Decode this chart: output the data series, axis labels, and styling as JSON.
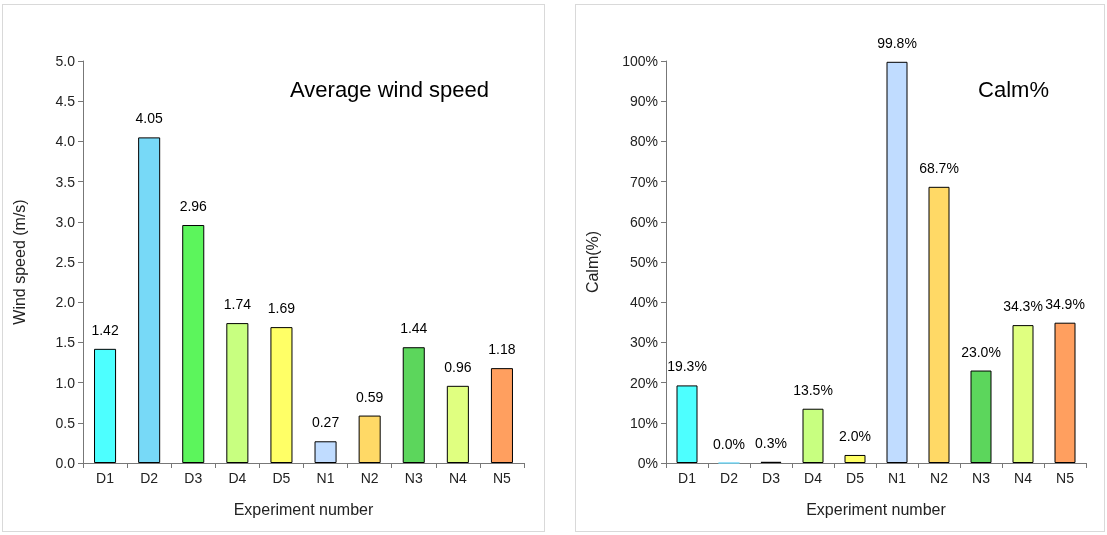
{
  "chart_data": [
    {
      "type": "bar",
      "title": "Average wind speed",
      "xlabel": "Experiment number",
      "ylabel": "Wind speed (m/s)",
      "categories": [
        "D1",
        "D2",
        "D3",
        "D4",
        "D5",
        "N1",
        "N2",
        "N3",
        "N4",
        "N5"
      ],
      "values": [
        1.42,
        4.05,
        2.96,
        1.74,
        1.69,
        0.27,
        0.59,
        1.44,
        0.96,
        1.18
      ],
      "colors": [
        "#4dffff",
        "#77d9f7",
        "#5cf55c",
        "#c8ff80",
        "#ffff66",
        "#c0dcff",
        "#ffd966",
        "#5cd65c",
        "#e0ff80",
        "#ff9f5f"
      ],
      "ylim": [
        0,
        5
      ],
      "yticks": [
        {
          "value": 0,
          "label": "0.0"
        },
        {
          "value": 0.5,
          "label": "0.5"
        },
        {
          "value": 1,
          "label": "1.0"
        },
        {
          "value": 1.5,
          "label": "1.5"
        },
        {
          "value": 2,
          "label": "2.0"
        },
        {
          "value": 2.5,
          "label": "2.5"
        },
        {
          "value": 3,
          "label": "3.0"
        },
        {
          "value": 3.5,
          "label": "3.5"
        },
        {
          "value": 4,
          "label": "4.0"
        },
        {
          "value": 4.5,
          "label": "4.5"
        },
        {
          "value": 5,
          "label": "5.0"
        }
      ],
      "data_labels": true,
      "grid": false
    },
    {
      "type": "bar",
      "title": "Calm%",
      "xlabel": "Experiment number",
      "ylabel": "Calm(%)",
      "categories": [
        "D1",
        "D2",
        "D3",
        "D4",
        "D5",
        "N1",
        "N2",
        "N3",
        "N4",
        "N5"
      ],
      "values": [
        19.3,
        0.0,
        0.3,
        13.5,
        2.0,
        99.8,
        68.7,
        23.0,
        34.3,
        34.9
      ],
      "value_labels": [
        "19.3%",
        "0.0%",
        "0.3%",
        "13.5%",
        "2.0%",
        "99.8%",
        "68.7%",
        "23.0%",
        "34.3%",
        "34.9%"
      ],
      "colors": [
        "#4dffff",
        "#77d9f7",
        "#5cf55c",
        "#c8ff80",
        "#ffff66",
        "#c0dcff",
        "#ffd966",
        "#5cd65c",
        "#e0ff80",
        "#ff9f5f"
      ],
      "ylim": [
        0,
        100
      ],
      "yticks": [
        {
          "value": 0,
          "label": "0%"
        },
        {
          "value": 10,
          "label": "10%"
        },
        {
          "value": 20,
          "label": "20%"
        },
        {
          "value": 30,
          "label": "30%"
        },
        {
          "value": 40,
          "label": "40%"
        },
        {
          "value": 50,
          "label": "50%"
        },
        {
          "value": 60,
          "label": "60%"
        },
        {
          "value": 70,
          "label": "70%"
        },
        {
          "value": 80,
          "label": "80%"
        },
        {
          "value": 90,
          "label": "90%"
        },
        {
          "value": 100,
          "label": "100%"
        }
      ],
      "grid": false
    }
  ]
}
